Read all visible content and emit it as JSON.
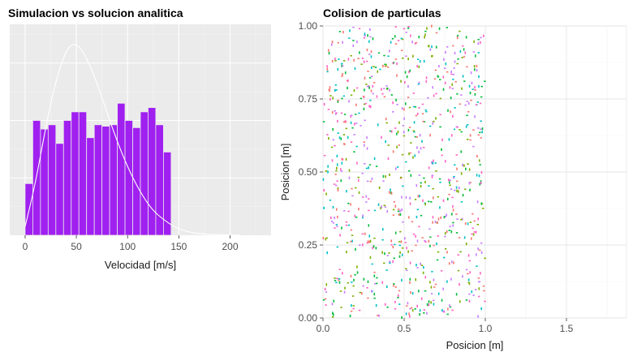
{
  "chart_data": [
    {
      "type": "bar",
      "title": "Simulacion vs solucion analitica",
      "xlabel": "Velocidad [m/s]",
      "ylabel": "",
      "xlim": [
        -15,
        240
      ],
      "ylim": [
        0,
        0.0147
      ],
      "x_ticks": [
        0,
        50,
        100,
        150,
        200
      ],
      "grid": true,
      "panel_background": "#EBEBEB",
      "bar_color": "#A020F0",
      "bins": [
        {
          "x0": 0,
          "x1": 7.5,
          "value": 0.0036
        },
        {
          "x0": 7.5,
          "x1": 15,
          "value": 0.008
        },
        {
          "x0": 15,
          "x1": 22.5,
          "value": 0.0074
        },
        {
          "x0": 22.5,
          "x1": 30,
          "value": 0.0077
        },
        {
          "x0": 30,
          "x1": 37.5,
          "value": 0.0064
        },
        {
          "x0": 37.5,
          "x1": 45,
          "value": 0.008
        },
        {
          "x0": 45,
          "x1": 52.5,
          "value": 0.0086
        },
        {
          "x0": 52.5,
          "x1": 60,
          "value": 0.0086
        },
        {
          "x0": 60,
          "x1": 67.5,
          "value": 0.0068
        },
        {
          "x0": 67.5,
          "x1": 75,
          "value": 0.0077
        },
        {
          "x0": 75,
          "x1": 82.5,
          "value": 0.0076
        },
        {
          "x0": 82.5,
          "x1": 90,
          "value": 0.0077
        },
        {
          "x0": 90,
          "x1": 97.5,
          "value": 0.0092
        },
        {
          "x0": 97.5,
          "x1": 105,
          "value": 0.008
        },
        {
          "x0": 105,
          "x1": 112.5,
          "value": 0.0075
        },
        {
          "x0": 112.5,
          "x1": 120,
          "value": 0.0086
        },
        {
          "x0": 120,
          "x1": 127.5,
          "value": 0.0089
        },
        {
          "x0": 127.5,
          "x1": 135,
          "value": 0.0077
        },
        {
          "x0": 135,
          "x1": 142.5,
          "value": 0.0058
        }
      ],
      "curve": {
        "color": "#FFFFFF",
        "points": [
          [
            0,
            0.0006
          ],
          [
            10,
            0.0036
          ],
          [
            20,
            0.0075
          ],
          [
            30,
            0.0108
          ],
          [
            40,
            0.0129
          ],
          [
            47.5,
            0.0134
          ],
          [
            55,
            0.013
          ],
          [
            65,
            0.0116
          ],
          [
            75,
            0.0096
          ],
          [
            85,
            0.0075
          ],
          [
            95,
            0.0056
          ],
          [
            105,
            0.004
          ],
          [
            115,
            0.0027
          ],
          [
            125,
            0.0017
          ],
          [
            135,
            0.0011
          ],
          [
            145,
            0.0006
          ],
          [
            155,
            0.0003
          ],
          [
            170,
            0.0001
          ],
          [
            190,
            3e-05
          ],
          [
            210,
            0.0
          ]
        ]
      }
    },
    {
      "type": "scatter",
      "title": "Colision de particulas",
      "xlabel": "Posicion [m]",
      "ylabel": "Posicion [m]",
      "xlim": [
        0,
        1.87
      ],
      "ylim": [
        0,
        1.0
      ],
      "x_ticks": [
        "0.0",
        "0.5",
        "1.0",
        "1.5"
      ],
      "y_ticks": [
        "0.00",
        "0.25",
        "0.50",
        "0.75",
        "1.00"
      ],
      "grid": true,
      "panel_background": "#FFFFFF",
      "colors": [
        "#F8766D",
        "#7CAE00",
        "#00BFC4",
        "#C77CFF",
        "#00BA38",
        "#FF61C3"
      ],
      "point_count": 900,
      "x_range": [
        0,
        1.0
      ],
      "y_range": [
        0,
        1.0
      ]
    }
  ]
}
